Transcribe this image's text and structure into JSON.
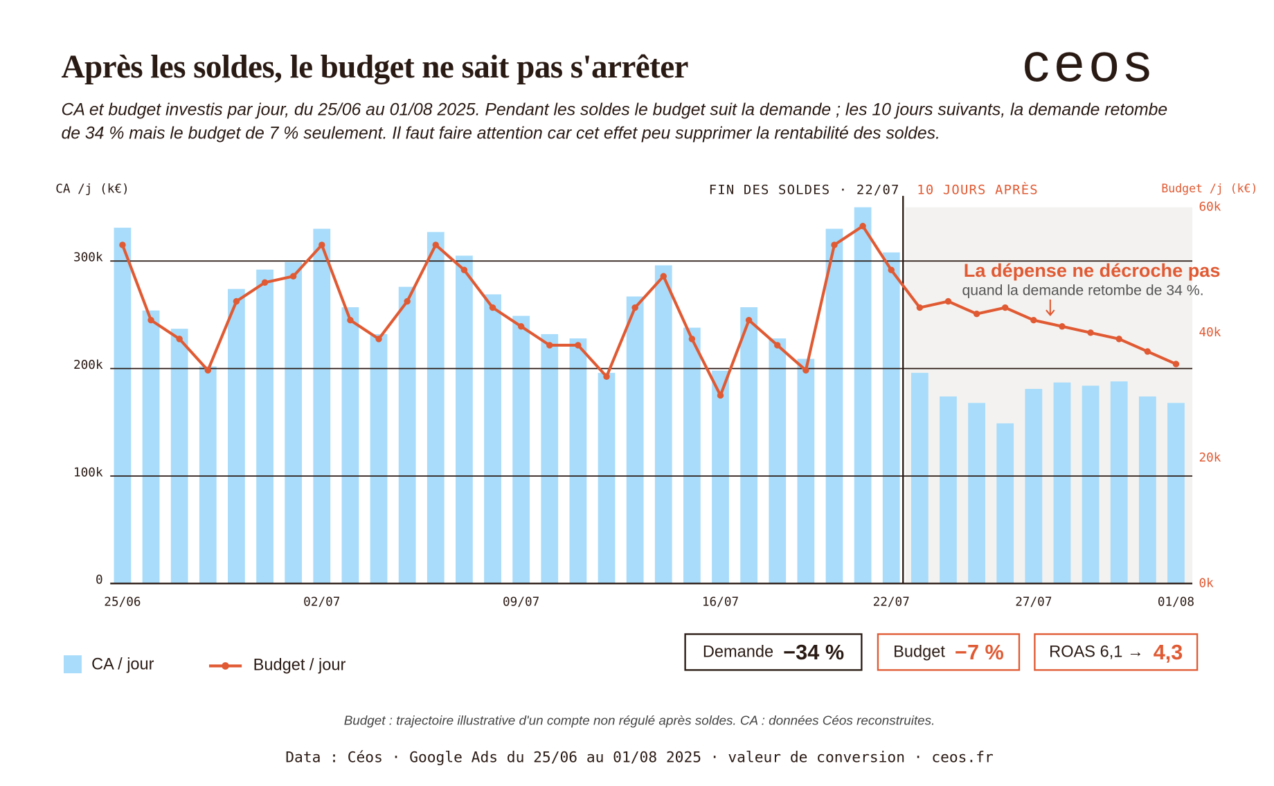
{
  "header": {
    "title": "Après les soldes, le budget ne sait pas s'arrêter",
    "logo": "ceos",
    "subtitle": "CA et budget investis par jour, du 25/06 au 01/08 2025. Pendant les soldes le budget suit la demande ; les 10 jours suivants, la demande retombe de 34 % mais le budget de 7 % seulement. Il faut faire attention car cet effet peu supprimer la rentabilité des soldes."
  },
  "chart_data": {
    "type": "bar",
    "y_label": "CA /j (k€)",
    "y2_label": "Budget /j (k€)",
    "categories": [
      "25/06",
      null,
      null,
      null,
      null,
      null,
      null,
      "02/07",
      null,
      null,
      null,
      null,
      null,
      null,
      "09/07",
      null,
      null,
      null,
      null,
      null,
      null,
      "16/07",
      null,
      null,
      null,
      null,
      null,
      "22/07",
      null,
      null,
      null,
      null,
      "27/07",
      null,
      null,
      null,
      null,
      "01/08"
    ],
    "series": [
      {
        "name": "CA / jour",
        "type": "bar",
        "color": "#a8dcfa",
        "values": [
          331000,
          254000,
          237000,
          202000,
          274000,
          292000,
          299000,
          330000,
          257000,
          232000,
          276000,
          327000,
          305000,
          269000,
          249000,
          232000,
          228000,
          196000,
          267000,
          296000,
          238000,
          198000,
          257000,
          228000,
          209000,
          330000,
          350000,
          308000,
          196000,
          174000,
          168000,
          149000,
          181000,
          187000,
          184000,
          188000,
          174000,
          168000
        ]
      },
      {
        "name": "Budget / jour",
        "type": "line",
        "axis": "y2",
        "color": "#e05a33",
        "values": [
          54000,
          42000,
          39000,
          34000,
          45000,
          48000,
          49000,
          54000,
          42000,
          39000,
          45000,
          54000,
          50000,
          44000,
          41000,
          38000,
          38000,
          33000,
          44000,
          49000,
          39000,
          30000,
          42000,
          38000,
          34000,
          54000,
          57000,
          50000,
          44000,
          45000,
          43000,
          44000,
          42000,
          41000,
          40000,
          39000,
          37000,
          35000
        ]
      }
    ],
    "ylim": [
      0,
      350000
    ],
    "yticks": [
      0,
      {
        "value": 100000,
        "label": "100k"
      },
      {
        "value": 200000,
        "label": "200k"
      },
      {
        "value": 300000,
        "label": "300k"
      }
    ],
    "y2lim": [
      0,
      60000
    ],
    "y2ticks": [
      {
        "value": 0,
        "label": "0k"
      },
      {
        "value": 20000,
        "label": "20k"
      },
      {
        "value": 40000,
        "label": "40k"
      },
      {
        "value": 60000,
        "label": "60k"
      }
    ],
    "grid": true,
    "annotations": {
      "sales_end": "FIN DES SOLDES · 22/07",
      "after": "10 JOURS APRÈS",
      "callout_title": "La dépense ne décroche pas",
      "callout_text": "quand la demande retombe de 34 %."
    }
  },
  "kpis": [
    {
      "label": "Demande",
      "value": "−34 %"
    },
    {
      "label": "Budget",
      "value": "−7 %"
    },
    {
      "label": "ROAS 6,1 →",
      "value": "4,3"
    }
  ],
  "footnote": "Budget : trajectoire illustrative d'un compte non régulé après soldes. CA : données Céos reconstruites.",
  "source": "Data : Céos · Google Ads du 25/06 au 01/08 2025 · valeur de conversion · ceos.fr"
}
